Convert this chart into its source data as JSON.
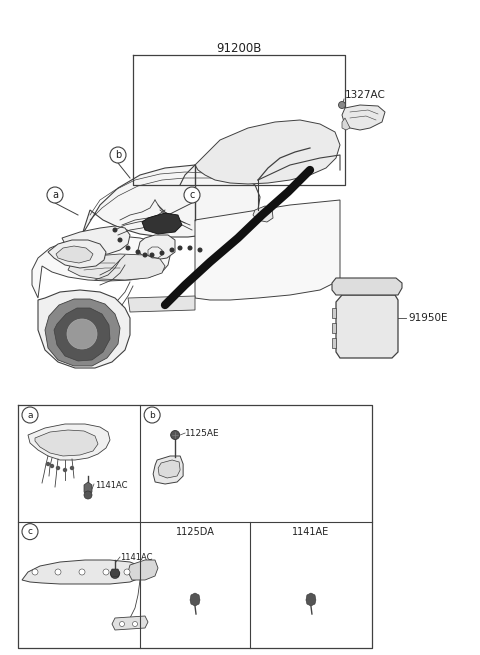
{
  "bg_color": "#ffffff",
  "line_color": "#404040",
  "text_color": "#222222",
  "main_label": "91200B",
  "label_1327AC": "1327AC",
  "label_91950E": "91950E",
  "label_a": "a",
  "label_b": "b",
  "label_c": "c",
  "label_1141AC": "1141AC",
  "label_1125AE": "1125AE",
  "label_1125DA": "1125DA",
  "label_1141AE": "1141AE",
  "figsize": [
    4.8,
    6.55
  ],
  "dpi": 100
}
